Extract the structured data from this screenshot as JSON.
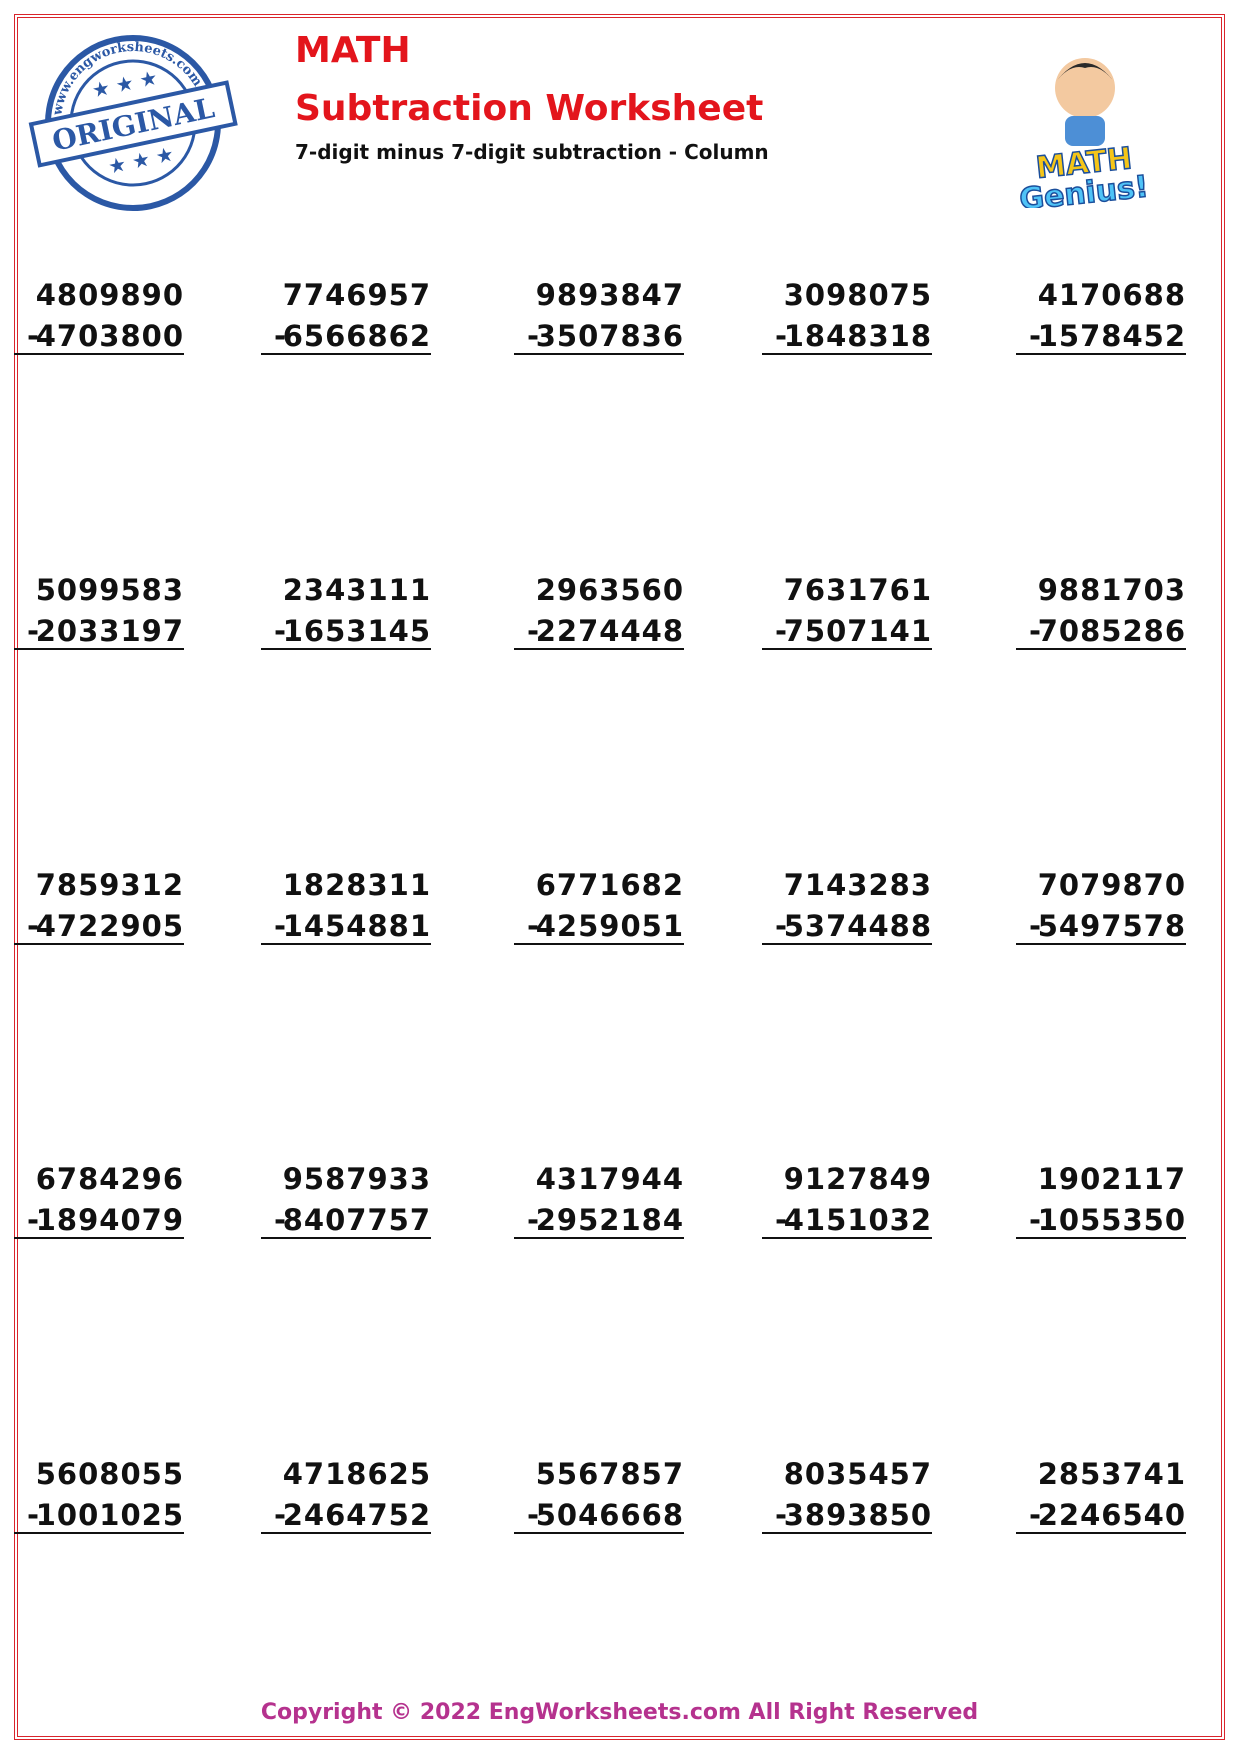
{
  "header": {
    "title": "MATH",
    "subtitle": "Subtraction Worksheet",
    "description": "7-digit minus 7-digit subtraction - Column"
  },
  "stamp": {
    "label": "ORIGINAL",
    "url": "www.engworksheets.com"
  },
  "logo": {
    "line1": "MATH",
    "line2": "Genius!"
  },
  "problems": [
    [
      {
        "top": 4809890,
        "operator": "-",
        "bottom": 4703800
      },
      {
        "top": 7746957,
        "operator": "-",
        "bottom": 6566862
      },
      {
        "top": 9893847,
        "operator": "-",
        "bottom": 3507836
      },
      {
        "top": 3098075,
        "operator": "-",
        "bottom": 1848318
      },
      {
        "top": 4170688,
        "operator": "-",
        "bottom": 1578452
      }
    ],
    [
      {
        "top": 5099583,
        "operator": "-",
        "bottom": 2033197
      },
      {
        "top": 2343111,
        "operator": "-",
        "bottom": 1653145
      },
      {
        "top": 2963560,
        "operator": "-",
        "bottom": 2274448
      },
      {
        "top": 7631761,
        "operator": "-",
        "bottom": 7507141
      },
      {
        "top": 9881703,
        "operator": "-",
        "bottom": 7085286
      }
    ],
    [
      {
        "top": 7859312,
        "operator": "-",
        "bottom": 4722905
      },
      {
        "top": 1828311,
        "operator": "-",
        "bottom": 1454881
      },
      {
        "top": 6771682,
        "operator": "-",
        "bottom": 4259051
      },
      {
        "top": 7143283,
        "operator": "-",
        "bottom": 5374488
      },
      {
        "top": 7079870,
        "operator": "-",
        "bottom": 5497578
      }
    ],
    [
      {
        "top": 6784296,
        "operator": "-",
        "bottom": 1894079
      },
      {
        "top": 9587933,
        "operator": "-",
        "bottom": 8407757
      },
      {
        "top": 4317944,
        "operator": "-",
        "bottom": 2952184
      },
      {
        "top": 9127849,
        "operator": "-",
        "bottom": 4151032
      },
      {
        "top": 1902117,
        "operator": "-",
        "bottom": 1055350
      }
    ],
    [
      {
        "top": 5608055,
        "operator": "-",
        "bottom": 1001025
      },
      {
        "top": 4718625,
        "operator": "-",
        "bottom": 2464752
      },
      {
        "top": 5567857,
        "operator": "-",
        "bottom": 5046668
      },
      {
        "top": 8035457,
        "operator": "-",
        "bottom": 3893850
      },
      {
        "top": 2853741,
        "operator": "-",
        "bottom": 2246540
      }
    ]
  ],
  "footer": {
    "copyright": "Copyright © 2022 EngWorksheets.com All Right Reserved"
  }
}
